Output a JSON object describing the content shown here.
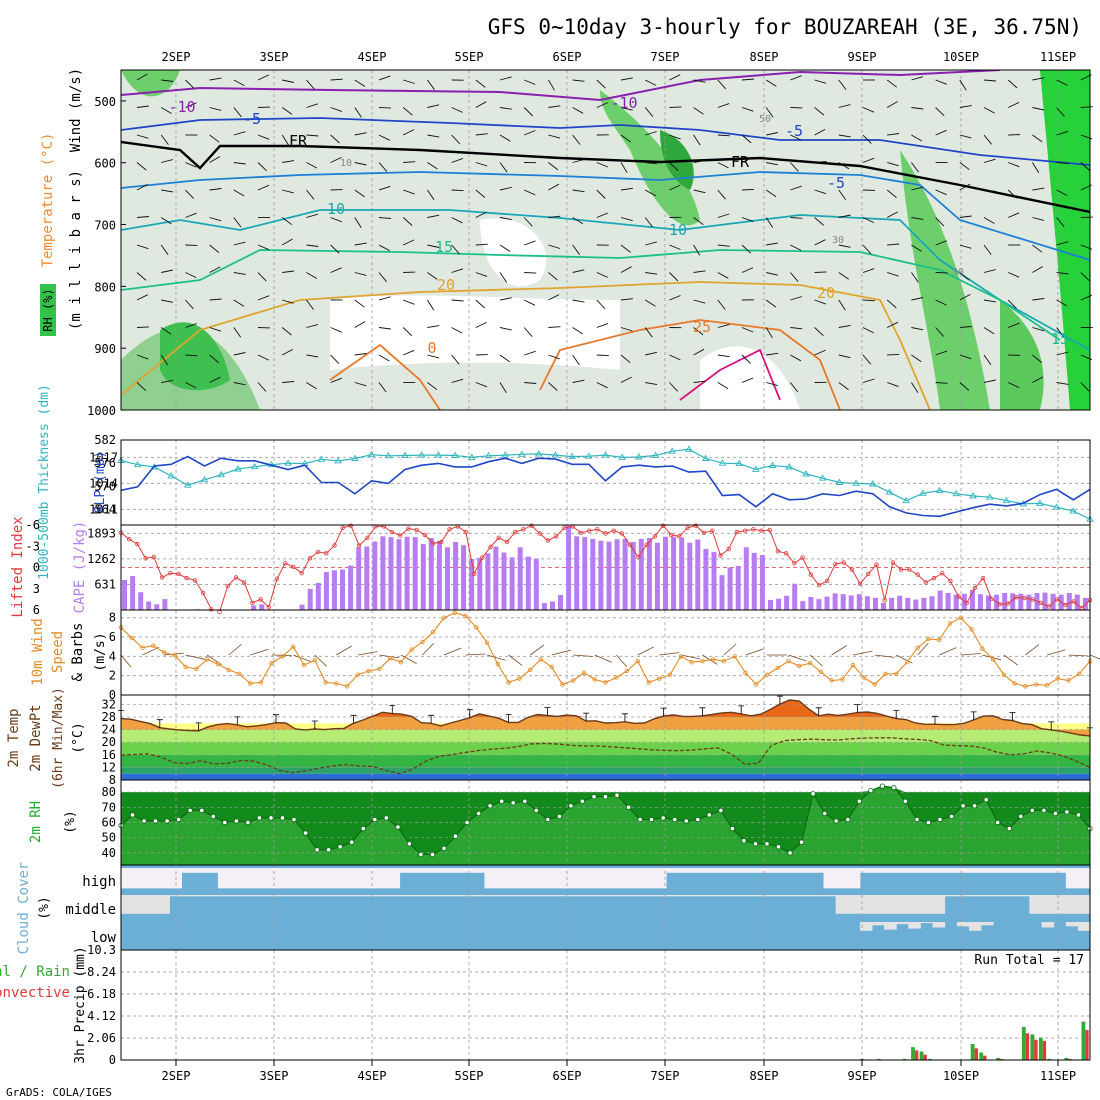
{
  "title": "GFS 0~10day 3-hourly for BOUZAREAH (3E, 36.75N)",
  "credit": "GrADS: COLA/IGES",
  "colors": {
    "rh": "#2ecc40",
    "temp_warm": "#f08c2c",
    "thickness": "#2eb6c0",
    "slp": "#1f45c8",
    "lifted": "#e03a3a",
    "cape": "#b77cf0",
    "wind": "#e58a1f",
    "cloud": "#6baed6",
    "rain": "#e03a3a",
    "total": "#33aa33"
  },
  "chart_data": [
    {
      "panel": "upper-air",
      "type": "heatmap",
      "ylabels": [
        "Wind (m/s)",
        "Temperature (°C)",
        "RH (%)",
        "(m i l l i b a r s)"
      ],
      "y_ticks": [
        500,
        600,
        700,
        800,
        900,
        1000
      ],
      "date_ticks": [
        "2SEP",
        "3SEP",
        "4SEP",
        "5SEP",
        "6SEP",
        "7SEP",
        "8SEP",
        "9SEP",
        "10SEP",
        "11SEP"
      ],
      "contour_labels": [
        "-10",
        "-10",
        "-5",
        "-5",
        "-5",
        "FR",
        "FR",
        "10",
        "10",
        "15",
        "15",
        "20",
        "20",
        "25",
        "0",
        "30",
        "30",
        "50",
        "10"
      ]
    },
    {
      "panel": "thickness-slp",
      "type": "line",
      "ylabel_left": "1000-500mb Thickness (dm)",
      "ylabel_right": "SLP (mb)",
      "thickness_ticks": [
        564,
        570,
        576,
        582
      ],
      "slp_ticks": [
        1011,
        1014,
        1017
      ],
      "series": [
        {
          "name": "SLP",
          "values": [
            1013.2,
            1013.6,
            1016.0,
            1016.2,
            1017.1,
            1016.0,
            1016.9,
            1016.6,
            1016.6,
            1016.1,
            1015.6,
            1016.1,
            1014.1,
            1014.1,
            1012.8,
            1014.3,
            1014.0,
            1015.6,
            1016.1,
            1016.3,
            1015.9,
            1015.9,
            1016.5,
            1016.9,
            1016.3,
            1016.9,
            1016.8,
            1016.2,
            1016.2,
            1014.3,
            1015.9,
            1016.1,
            1015.9,
            1016.0,
            1015.3,
            1015.4,
            1012.6,
            1012.7,
            1011.3,
            1012.8,
            1012.1,
            1012.2,
            1012.8,
            1012.6,
            1013.1,
            1012.8,
            1011.3,
            1010.6,
            1010.3,
            1010.2,
            1010.7,
            1011.2,
            1011.6,
            1011.4,
            1011.7,
            1012.7,
            1013.3,
            1012.1,
            1013.3
          ]
        },
        {
          "name": "Thickness",
          "values": [
            576.7,
            575.6,
            575.0,
            572.7,
            570.3,
            571.7,
            573.0,
            574.5,
            575.1,
            575.6,
            576.0,
            575.9,
            577.0,
            576.6,
            577.2,
            578.2,
            577.9,
            578.0,
            578.1,
            578.1,
            578.0,
            577.5,
            577.9,
            578.1,
            578.3,
            578.4,
            578.1,
            577.7,
            577.8,
            578.1,
            577.5,
            577.6,
            578.0,
            579.1,
            579.6,
            577.2,
            576.0,
            575.9,
            574.4,
            575.4,
            575.0,
            573.2,
            572.1,
            571.0,
            570.8,
            570.6,
            568.5,
            566.3,
            568.2,
            568.9,
            568.1,
            567.5,
            567.2,
            566.3,
            565.5,
            565.6,
            564.6,
            563.6,
            561.5
          ]
        }
      ]
    },
    {
      "panel": "cape-lifted",
      "type": "bar",
      "ylabel_left": "Lifted Index",
      "ylabel_right": "CAPE (J/kg)",
      "li_ticks": [
        -6,
        -3,
        0,
        3,
        6
      ],
      "cape_ticks": [
        631,
        1262,
        1893
      ],
      "series": [
        {
          "name": "CAPE",
          "values": [
            740,
            840,
            440,
            210,
            140,
            270,
            0,
            0,
            0,
            20,
            0,
            0,
            0,
            0,
            0,
            0,
            110,
            140,
            0,
            0,
            0,
            0,
            130,
            520,
            670,
            940,
            980,
            1000,
            1100,
            1550,
            1570,
            1690,
            1820,
            1800,
            1750,
            1810,
            1800,
            1630,
            1780,
            1710,
            1550,
            1680,
            1600,
            1260,
            1290,
            1400,
            1570,
            1420,
            1300,
            1550,
            1320,
            1270,
            170,
            210,
            370,
            2080,
            1820,
            1800,
            1760,
            1710,
            1690,
            1750,
            1760,
            1680,
            1760,
            1780,
            1660,
            1810,
            1810,
            1790,
            1660,
            1740,
            1510,
            1430,
            860,
            1050,
            1090,
            1550,
            1410,
            1360,
            250,
            280,
            350,
            650,
            220,
            320,
            270,
            330,
            410,
            390,
            360,
            390,
            340,
            300,
            180,
            300,
            350,
            300,
            260,
            300,
            340,
            480,
            420,
            380,
            400,
            500,
            390,
            360,
            380,
            420,
            410,
            400,
            380,
            420,
            430,
            400,
            380,
            420,
            380,
            300
          ]
        },
        {
          "name": "Lifted Index",
          "values": [
            -4.9,
            -4.0,
            -3.3,
            -1.3,
            -1.5,
            1.4,
            0.8,
            0.9,
            1.5,
            1.8,
            3.6,
            5.9,
            6.3,
            2.6,
            1.4,
            2.1,
            5.0,
            4.5,
            5.6,
            1.6,
            -0.6,
            -0.1,
            0.8,
            -1.3,
            -2.2,
            -2.0,
            -3.1,
            -5.6,
            -5.9,
            -3.1,
            -4.2,
            -5.8,
            -5.8,
            -5.0,
            -4.5,
            -5.5,
            -5.3,
            -4.6,
            -3.4,
            -3.6,
            -5.4,
            -5.8,
            -5.0,
            0.9,
            -1.4,
            -2.9,
            -4.2,
            -3.6,
            -5.0,
            -5.4,
            -5.9,
            -4.8,
            -3.8,
            -4.4,
            -5.6,
            -5.8,
            -4.9,
            -5.2,
            -5.4,
            -4.8,
            -5.2,
            -4.8,
            -3.2,
            -1.5,
            -3.2,
            -4.4,
            -5.9,
            -4.6,
            -4.4,
            -5.6,
            -5.9,
            -4.9,
            -5.2,
            -1.7,
            -2.6,
            -5.0,
            -5.2,
            -5.4,
            -5.2,
            -5.3,
            -2.3,
            -2.0,
            -0.6,
            -1.4,
            1.0,
            2.5,
            1.9,
            -0.5,
            -0.7,
            0.3,
            2.3,
            0.9,
            -0.4,
            4.6,
            -0.7,
            0.3,
            0.3,
            1.0,
            2.1,
            1.5,
            0.8,
            1.9,
            4.1,
            5.0,
            2.9,
            1.5,
            4.4,
            5.2,
            5.1,
            4.2,
            4.3,
            4.5,
            5.0,
            5.5,
            4.5,
            5.3,
            4.8,
            5.7,
            4.6
          ]
        }
      ]
    },
    {
      "panel": "wind10m",
      "type": "line",
      "ylabel": "10m Wind Speed & Barbs (m/s)",
      "y_ticks": [
        0,
        2,
        4,
        6,
        8
      ],
      "ylim": [
        0,
        8
      ],
      "series": [
        {
          "name": "Speed",
          "values": [
            7.0,
            5.9,
            4.9,
            5.1,
            4.4,
            4.1,
            2.9,
            2.7,
            3.7,
            3.2,
            2.6,
            2.2,
            1.2,
            1.3,
            3.3,
            4.0,
            5.0,
            3.1,
            3.6,
            1.3,
            1.2,
            0.9,
            2.1,
            2.5,
            2.7,
            3.8,
            3.4,
            4.7,
            5.5,
            6.5,
            8.0,
            8.5,
            8.2,
            7.0,
            5.4,
            3.2,
            1.3,
            1.7,
            2.6,
            3.7,
            2.9,
            1.1,
            1.5,
            2.3,
            1.6,
            1.3,
            1.8,
            2.5,
            3.5,
            1.3,
            1.7,
            2.1,
            4.0,
            3.4,
            3.5,
            3.7,
            3.5,
            4.0,
            2.3,
            1.1,
            2.1,
            2.8,
            3.5,
            3.0,
            3.3,
            2.4,
            1.5,
            1.6,
            3.1,
            1.8,
            1.1,
            2.2,
            2.2,
            3.4,
            4.9,
            5.8,
            5.7,
            7.4,
            8.0,
            6.8,
            4.8,
            3.7,
            2.1,
            1.2,
            0.9,
            1.1,
            1.0,
            1.7,
            1.5,
            2.2,
            3.5
          ]
        }
      ]
    },
    {
      "panel": "temperature",
      "type": "area",
      "ylabel": "2m Temp 2m DewPt (6hr Min/Max) (°C)",
      "y_ticks": [
        8,
        12,
        16,
        20,
        24,
        28,
        32
      ],
      "ylim": [
        8,
        34
      ],
      "series": [
        {
          "name": "2m Temp",
          "values": [
            27.5,
            27.3,
            26.6,
            25.9,
            24.6,
            24.2,
            23.9,
            23.7,
            23.6,
            24.9,
            25.6,
            25.9,
            25.5,
            24.9,
            25.2,
            25.6,
            26.2,
            26.1,
            24.2,
            23.9,
            24.2,
            24.0,
            24.3,
            24.4,
            26.0,
            27.1,
            28.3,
            29.5,
            29.1,
            28.9,
            28.2,
            26.2,
            26.0,
            25.2,
            26.1,
            26.9,
            27.8,
            29.0,
            28.3,
            27.6,
            26.3,
            26.3,
            27.9,
            28.8,
            28.5,
            28.2,
            28.6,
            28.4,
            26.7,
            26.8,
            26.1,
            26.2,
            26.5,
            26.0,
            26.1,
            27.4,
            28.3,
            28.7,
            28.2,
            28.2,
            28.4,
            28.8,
            29.3,
            29.5,
            29.0,
            28.4,
            28.9,
            30.4,
            32.1,
            33.4,
            33.1,
            30.5,
            28.4,
            28.9,
            28.5,
            28.9,
            29.4,
            29.6,
            29.2,
            28.3,
            27.5,
            27.2,
            26.1,
            25.7,
            25.7,
            25.6,
            25.6,
            26.0,
            27.1,
            28.3,
            28.4,
            27.2,
            26.9,
            25.9,
            25.6,
            24.3,
            23.9,
            23.5,
            22.9,
            22.3,
            22.0
          ]
        },
        {
          "name": "2m DewPt",
          "values": [
            15.9,
            16.1,
            16.3,
            15.3,
            13.5,
            13.2,
            14.1,
            13.1,
            13.3,
            14.2,
            14.0,
            12.8,
            11.0,
            10.3,
            11.0,
            11.8,
            12.5,
            12.9,
            12.4,
            12.3,
            11.0,
            10.0,
            11.5,
            14.1,
            15.6,
            16.1,
            16.8,
            17.4,
            17.8,
            18.1,
            18.7,
            19.5,
            19.6,
            19.4,
            19.0,
            18.8,
            18.8,
            18.5,
            18.2,
            17.9,
            17.6,
            17.4,
            17.3,
            17.5,
            17.9,
            18.2,
            16.2,
            13.0,
            13.3,
            19.0,
            20.5,
            20.8,
            21.0,
            20.8,
            20.7,
            21.1,
            21.3,
            21.4,
            21.4,
            21.1,
            20.9,
            20.5,
            19.1,
            18.9,
            18.8,
            18.2,
            16.8,
            16.0,
            16.3,
            17.2,
            16.6,
            15.6,
            13.9,
            12.0
          ]
        }
      ]
    },
    {
      "panel": "rh2m",
      "type": "area",
      "ylabel": "2m RH (%)",
      "y_ticks": [
        40,
        50,
        60,
        70,
        80
      ],
      "ylim": [
        32,
        88
      ],
      "series": [
        {
          "name": "2m RH",
          "values": [
            58,
            65,
            61,
            61,
            61,
            62,
            68,
            68,
            64,
            60,
            61,
            60,
            63,
            63,
            63,
            62,
            53,
            42,
            42,
            44,
            47,
            56,
            62,
            63,
            57,
            46,
            39,
            39,
            43,
            51,
            60,
            66,
            71,
            74,
            73,
            74,
            68,
            62,
            64,
            71,
            74,
            77,
            77,
            78,
            70,
            62,
            62,
            63,
            62,
            61,
            62,
            65,
            68,
            56,
            48,
            46,
            46,
            44,
            40,
            47,
            79,
            66,
            61,
            62,
            74,
            81,
            84,
            83,
            74,
            62,
            60,
            62,
            64,
            71,
            71,
            75,
            60,
            56,
            64,
            68,
            68,
            66,
            67,
            65,
            56
          ]
        }
      ]
    },
    {
      "panel": "cloud",
      "type": "heatmap",
      "ylabel": "Cloud Cover (%)",
      "levels": [
        "high",
        "middle",
        "low"
      ]
    },
    {
      "panel": "precip",
      "type": "bar",
      "ylabel": "3hr Precip (mm)",
      "left_labels": [
        "Total / Rain",
        "Convective"
      ],
      "y_ticks": [
        0,
        2.06,
        4.12,
        6.18,
        8.24,
        10.3
      ],
      "ylim": [
        0,
        10.3
      ],
      "run_total_label": "Run Total = 17",
      "series": [
        {
          "name": "Total",
          "values": [
            0.1,
            0.0,
            0.1,
            0.0,
            0.0,
            0.1,
            1.2,
            0.8,
            0.1,
            0.0,
            0.0,
            0.0,
            0.0,
            1.5,
            0.7,
            0.0,
            0.2,
            0.0,
            0.0,
            3.1,
            2.4,
            2.1,
            0.1,
            0.0,
            0.2,
            0.0,
            3.6
          ]
        },
        {
          "name": "Convective",
          "values": [
            0.0,
            0.0,
            0.0,
            0.0,
            0.0,
            0.0,
            0.9,
            0.5,
            0.0,
            0.0,
            0.0,
            0.0,
            0.0,
            1.1,
            0.4,
            0.0,
            0.1,
            0.0,
            0.0,
            2.5,
            1.9,
            1.8,
            0.0,
            0.0,
            0.1,
            0.0,
            2.8
          ]
        }
      ]
    }
  ]
}
